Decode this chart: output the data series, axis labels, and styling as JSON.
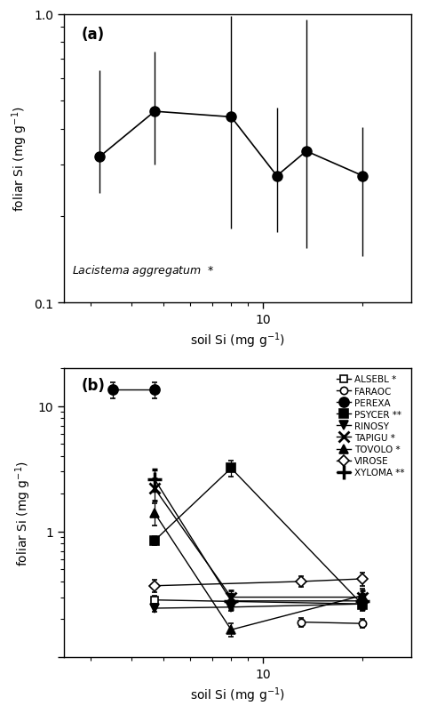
{
  "panel_a": {
    "x": [
      3.2,
      4.7,
      8.0,
      11.0,
      13.5,
      20.0
    ],
    "y": [
      0.32,
      0.46,
      0.44,
      0.275,
      0.335,
      0.275
    ],
    "yerr_low": [
      0.08,
      0.16,
      0.26,
      0.1,
      0.18,
      0.13
    ],
    "yerr_high": [
      0.32,
      0.28,
      0.54,
      0.2,
      0.62,
      0.13
    ],
    "species_label": "Lacistema aggregatum",
    "species_sig": "*"
  },
  "panel_b": {
    "species": [
      {
        "name": "ALSEBL",
        "sig": " *",
        "marker": "s",
        "filled": false,
        "ms": 6,
        "x": [
          4.7,
          20.0
        ],
        "y": [
          0.285,
          0.265
        ],
        "yerr": [
          0.025,
          0.025
        ]
      },
      {
        "name": "FARAOC",
        "sig": "",
        "marker": "o",
        "filled": false,
        "ms": 6,
        "x": [
          13.0,
          20.0
        ],
        "y": [
          0.19,
          0.185
        ],
        "yerr": [
          0.015,
          0.015
        ]
      },
      {
        "name": "PEREXA",
        "sig": "",
        "marker": "o",
        "filled": true,
        "ms": 8,
        "x": [
          3.5,
          4.7
        ],
        "y": [
          13.5,
          13.5
        ],
        "yerr": [
          2.0,
          2.0
        ]
      },
      {
        "name": "PSYCER",
        "sig": " **",
        "marker": "s",
        "filled": true,
        "ms": 7,
        "x": [
          4.7,
          8.0,
          20.0
        ],
        "y": [
          0.85,
          3.2,
          0.26
        ],
        "yerr": [
          0.07,
          0.45,
          0.025
        ]
      },
      {
        "name": "RINOSY",
        "sig": "",
        "marker": "v",
        "filled": true,
        "ms": 7,
        "x": [
          4.7,
          8.0,
          20.0
        ],
        "y": [
          0.245,
          0.25,
          0.265
        ],
        "yerr": [
          0.015,
          0.015,
          0.015
        ]
      },
      {
        "name": "TAPIGU",
        "sig": " *",
        "marker": "x",
        "filled": false,
        "ms": 9,
        "x": [
          4.7,
          8.0,
          20.0
        ],
        "y": [
          2.2,
          0.3,
          0.3
        ],
        "yerr": [
          0.45,
          0.04,
          0.04
        ]
      },
      {
        "name": "TOVOLO",
        "sig": " *",
        "marker": "^",
        "filled": true,
        "ms": 7,
        "x": [
          4.7,
          8.0,
          20.0
        ],
        "y": [
          1.4,
          0.165,
          0.31
        ],
        "yerr": [
          0.28,
          0.02,
          0.04
        ]
      },
      {
        "name": "VIROSE",
        "sig": "",
        "marker": "D",
        "filled": false,
        "ms": 6,
        "x": [
          4.7,
          13.0,
          20.0
        ],
        "y": [
          0.37,
          0.4,
          0.42
        ],
        "yerr": [
          0.04,
          0.04,
          0.05
        ]
      },
      {
        "name": "XYLOMA",
        "sig": " **",
        "marker": "x",
        "filled": false,
        "ms": 10,
        "thick": true,
        "x": [
          4.7,
          8.0,
          20.0
        ],
        "y": [
          2.6,
          0.28,
          0.28
        ],
        "yerr": [
          0.5,
          0.04,
          0.04
        ]
      }
    ]
  },
  "xlim": [
    2.5,
    28.0
  ],
  "ylim_a": [
    0.1,
    1.0
  ],
  "ylim_b": [
    0.1,
    20.0
  ],
  "xlabel": "soil Si (mg g$^{-1}$)",
  "ylabel": "foliar Si (mg g$^{-1}$)",
  "bg_color": "#ffffff"
}
